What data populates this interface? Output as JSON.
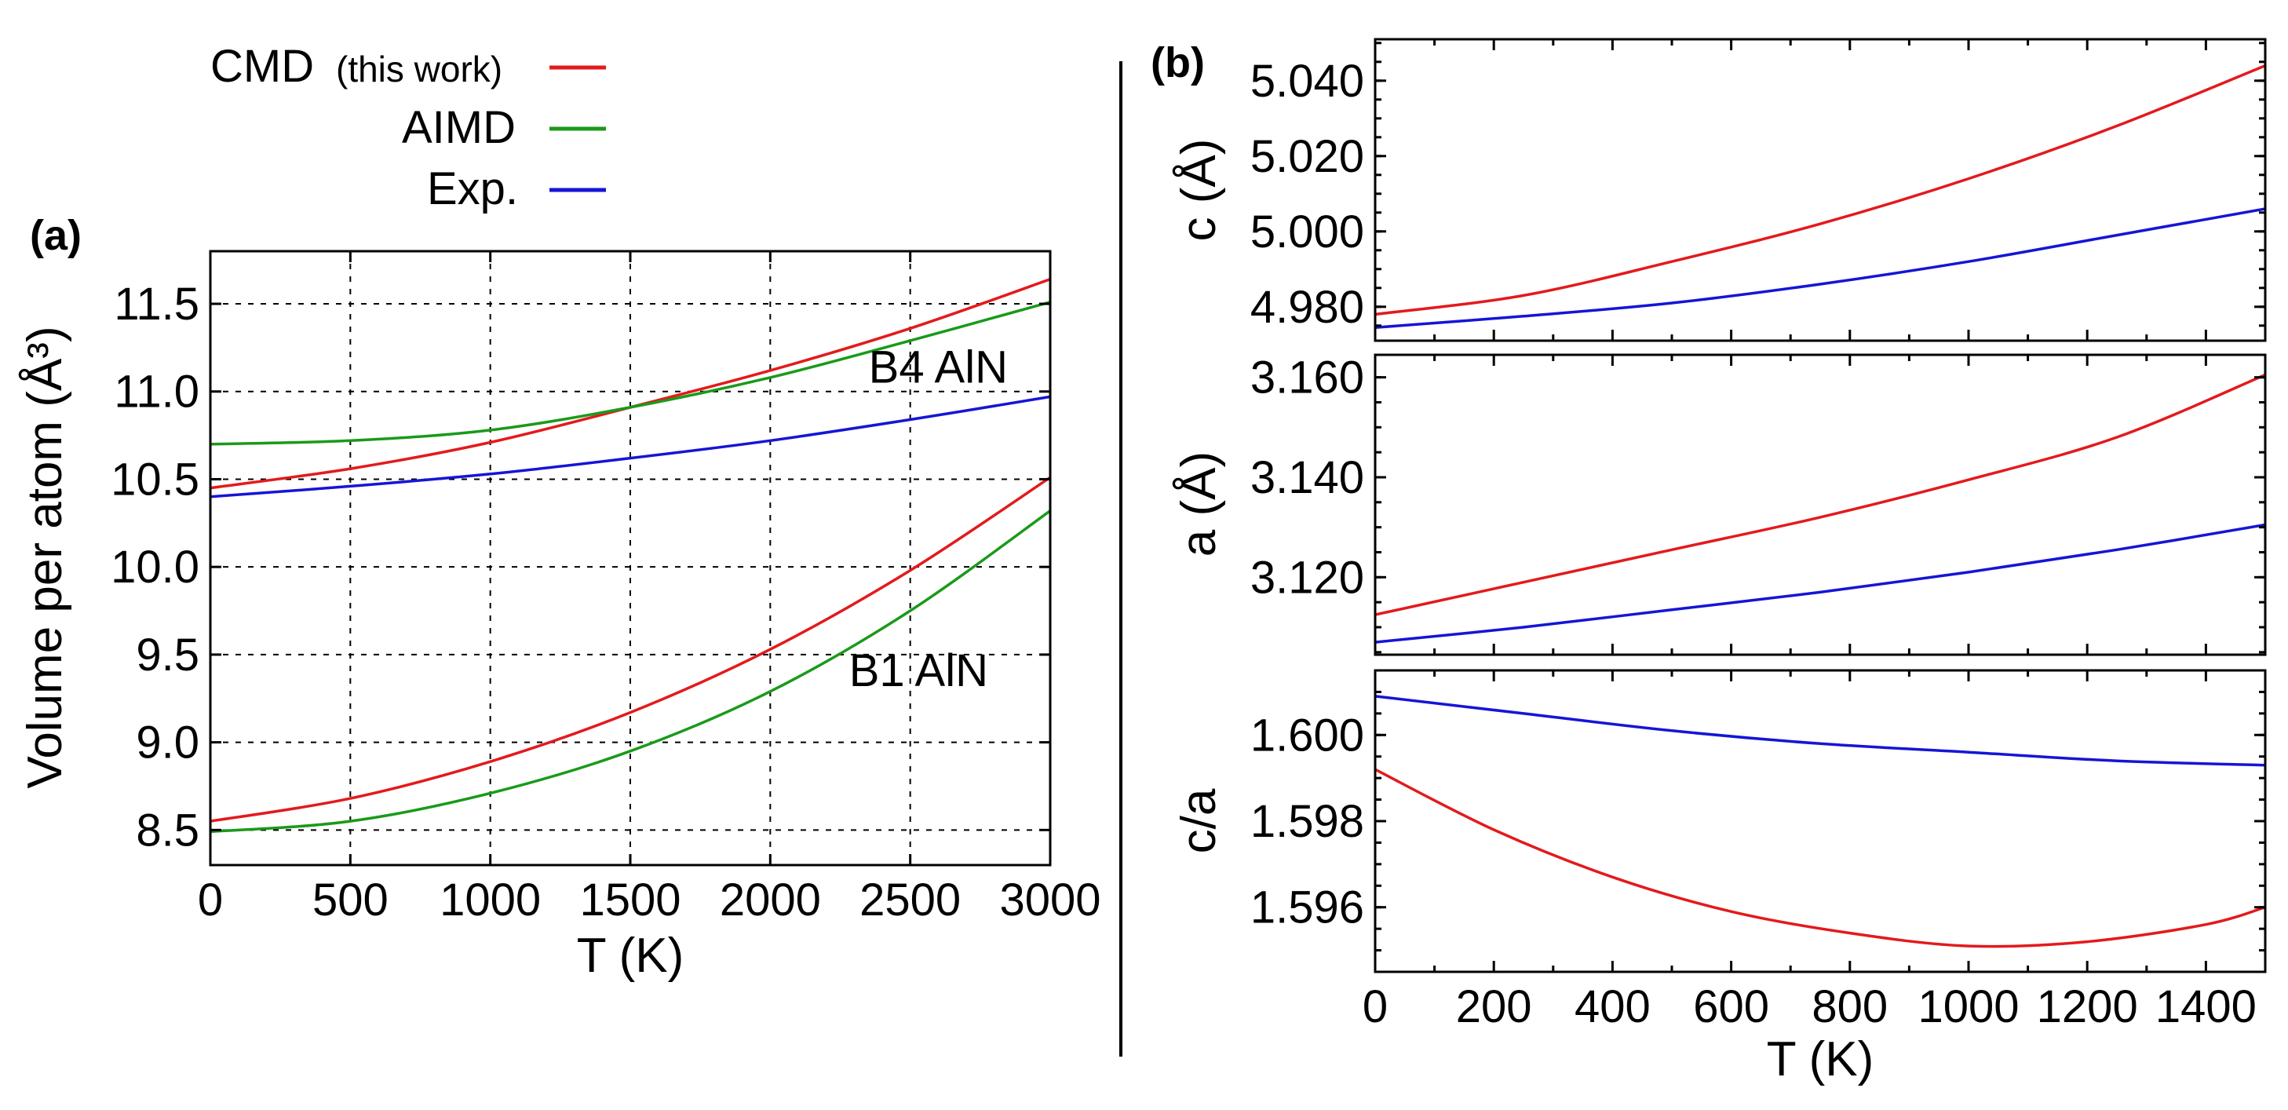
{
  "legend": {
    "entries": [
      {
        "main": "CMD",
        "sub": "(this work)",
        "color": "#e31a1c"
      },
      {
        "main": "AIMD",
        "sub": "",
        "color": "#1a9a1a"
      },
      {
        "main": "Exp.",
        "sub": "",
        "color": "#1515d6"
      }
    ]
  },
  "colors": {
    "cmd": "#e31a1c",
    "aimd": "#1a9a1a",
    "exp": "#1515d6"
  },
  "chart_data": [
    {
      "id": "a",
      "panel_label": "(a)",
      "type": "line",
      "xlabel": "T (K)",
      "ylabel": "Volume per atom (Å³)",
      "xlim": [
        0,
        3000
      ],
      "ylim": [
        8.3,
        11.8
      ],
      "xticks": [
        0,
        500,
        1000,
        1500,
        2000,
        2500,
        3000
      ],
      "yticks": [
        8.5,
        9.0,
        9.5,
        10.0,
        10.5,
        11.0,
        11.5
      ],
      "grid": true,
      "annotations": [
        {
          "text": "B4 AlN",
          "x": 2600,
          "y": 11.05
        },
        {
          "text": "B1 AlN",
          "x": 2530,
          "y": 9.32
        }
      ],
      "series": [
        {
          "name": "CMD",
          "group": "B4 AlN",
          "color": "#e31a1c",
          "x": [
            0,
            500,
            1000,
            1500,
            2000,
            2500,
            3000
          ],
          "y": [
            10.45,
            10.56,
            10.71,
            10.91,
            11.12,
            11.36,
            11.64
          ]
        },
        {
          "name": "AIMD",
          "group": "B4 AlN",
          "color": "#1a9a1a",
          "x": [
            0,
            500,
            1000,
            1500,
            2000,
            2500,
            3000
          ],
          "y": [
            10.7,
            10.72,
            10.78,
            10.91,
            11.08,
            11.29,
            11.51
          ]
        },
        {
          "name": "Exp.",
          "group": "B4 AlN",
          "color": "#1515d6",
          "x": [
            0,
            500,
            1000,
            1500,
            2000,
            2500,
            3000
          ],
          "y": [
            10.4,
            10.46,
            10.53,
            10.62,
            10.72,
            10.84,
            10.97
          ]
        },
        {
          "name": "CMD",
          "group": "B1 AlN",
          "color": "#e31a1c",
          "x": [
            0,
            500,
            1000,
            1500,
            2000,
            2500,
            3000
          ],
          "y": [
            8.55,
            8.68,
            8.89,
            9.17,
            9.53,
            9.98,
            10.51
          ]
        },
        {
          "name": "AIMD",
          "group": "B1 AlN",
          "color": "#1a9a1a",
          "x": [
            0,
            500,
            1000,
            1500,
            2000,
            2500,
            3000
          ],
          "y": [
            8.49,
            8.55,
            8.71,
            8.95,
            9.29,
            9.75,
            10.32
          ]
        }
      ]
    },
    {
      "id": "b_c",
      "panel_label": "(b)",
      "type": "line",
      "xlabel": "",
      "ylabel": "c (Å)",
      "xlim": [
        0,
        1500
      ],
      "ylim": [
        4.971,
        5.051
      ],
      "xticks": [
        0,
        200,
        400,
        600,
        800,
        1000,
        1200,
        1400
      ],
      "yticks": [
        4.98,
        5.0,
        5.02,
        5.04
      ],
      "ytick_labels": [
        "4.980",
        "5.000",
        "5.020",
        "5.040"
      ],
      "minor_y_step": 0.005,
      "grid": false,
      "series": [
        {
          "name": "CMD",
          "color": "#e31a1c",
          "x": [
            0,
            250,
            500,
            750,
            1000,
            1250,
            1500
          ],
          "y": [
            4.978,
            4.983,
            4.992,
            5.002,
            5.014,
            5.028,
            5.044
          ]
        },
        {
          "name": "Exp.",
          "color": "#1515d6",
          "x": [
            0,
            250,
            500,
            750,
            1000,
            1250,
            1500
          ],
          "y": [
            4.9745,
            4.9775,
            4.981,
            4.986,
            4.992,
            4.999,
            5.006
          ]
        }
      ]
    },
    {
      "id": "b_a",
      "panel_label": "",
      "type": "line",
      "xlabel": "",
      "ylabel": "a (Å)",
      "xlim": [
        0,
        1500
      ],
      "ylim": [
        3.1045,
        3.1645
      ],
      "xticks": [
        0,
        200,
        400,
        600,
        800,
        1000,
        1200,
        1400
      ],
      "yticks": [
        3.12,
        3.14,
        3.16
      ],
      "ytick_labels": [
        "3.120",
        "3.140",
        "3.160"
      ],
      "minor_y_step": 0.005,
      "grid": false,
      "series": [
        {
          "name": "CMD",
          "color": "#e31a1c",
          "x": [
            0,
            250,
            500,
            750,
            1000,
            1250,
            1500
          ],
          "y": [
            3.1125,
            3.119,
            3.1255,
            3.132,
            3.1395,
            3.148,
            3.1605
          ]
        },
        {
          "name": "Exp.",
          "color": "#1515d6",
          "x": [
            0,
            250,
            500,
            750,
            1000,
            1250,
            1500
          ],
          "y": [
            3.107,
            3.11,
            3.1135,
            3.117,
            3.121,
            3.1255,
            3.1305
          ]
        }
      ]
    },
    {
      "id": "b_ca",
      "panel_label": "",
      "type": "line",
      "xlabel": "T (K)",
      "ylabel": "c/a",
      "xlim": [
        0,
        1500
      ],
      "ylim": [
        1.5945,
        1.6015
      ],
      "xticks": [
        0,
        200,
        400,
        600,
        800,
        1000,
        1200,
        1400
      ],
      "yticks": [
        1.596,
        1.598,
        1.6
      ],
      "ytick_labels": [
        "1.596",
        "1.598",
        "1.600"
      ],
      "minor_y_step": 0.0005,
      "grid": false,
      "series": [
        {
          "name": "Exp.",
          "color": "#1515d6",
          "x": [
            0,
            250,
            500,
            750,
            1000,
            1250,
            1500
          ],
          "y": [
            1.6009,
            1.6005,
            1.6001,
            1.5998,
            1.5996,
            1.5994,
            1.5993
          ]
        },
        {
          "name": "CMD",
          "color": "#e31a1c",
          "x": [
            0,
            200,
            400,
            600,
            800,
            1000,
            1200,
            1400,
            1500
          ],
          "y": [
            1.5992,
            1.5978,
            1.5967,
            1.5959,
            1.5954,
            1.5951,
            1.5952,
            1.5956,
            1.596
          ]
        }
      ]
    }
  ]
}
